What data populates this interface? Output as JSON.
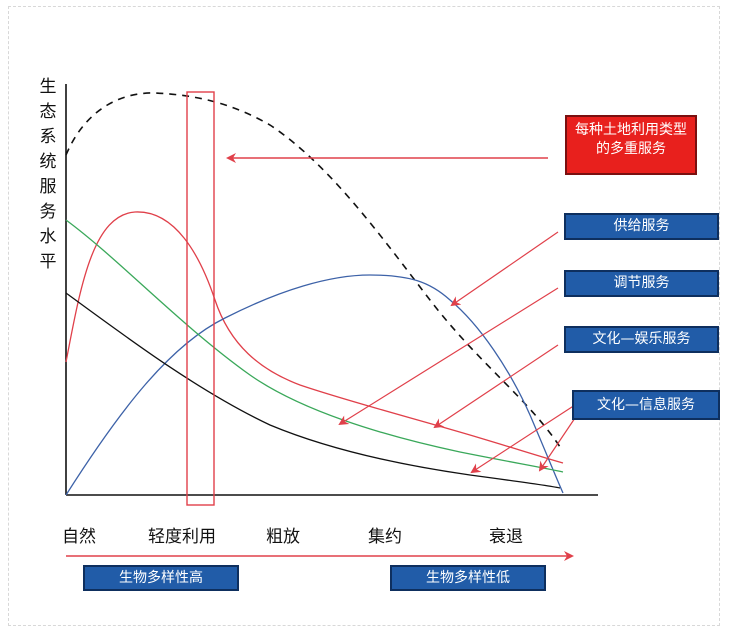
{
  "diagram": {
    "y_axis_label": [
      "生",
      "态",
      "系",
      "统",
      "服",
      "务",
      "水",
      "平"
    ],
    "stages": [
      "自然",
      "轻度利用",
      "粗放",
      "集约",
      "衰退"
    ],
    "legend_boxes": {
      "multi": [
        "每种土地利用类型",
        "的多重服务"
      ],
      "supply": "供给服务",
      "regulating": "调节服务",
      "culture_recreation": "文化—娱乐服务",
      "culture_information": "文化—信息服务"
    },
    "biodiversity": {
      "high": "生物多样性高",
      "low": "生物多样性低"
    },
    "colors": {
      "red": "#e0404a",
      "blue": "#3d62a8",
      "green": "#3aa85a",
      "black": "#111111",
      "box_blue": "#215ca8",
      "box_red": "#e8201d"
    }
  }
}
